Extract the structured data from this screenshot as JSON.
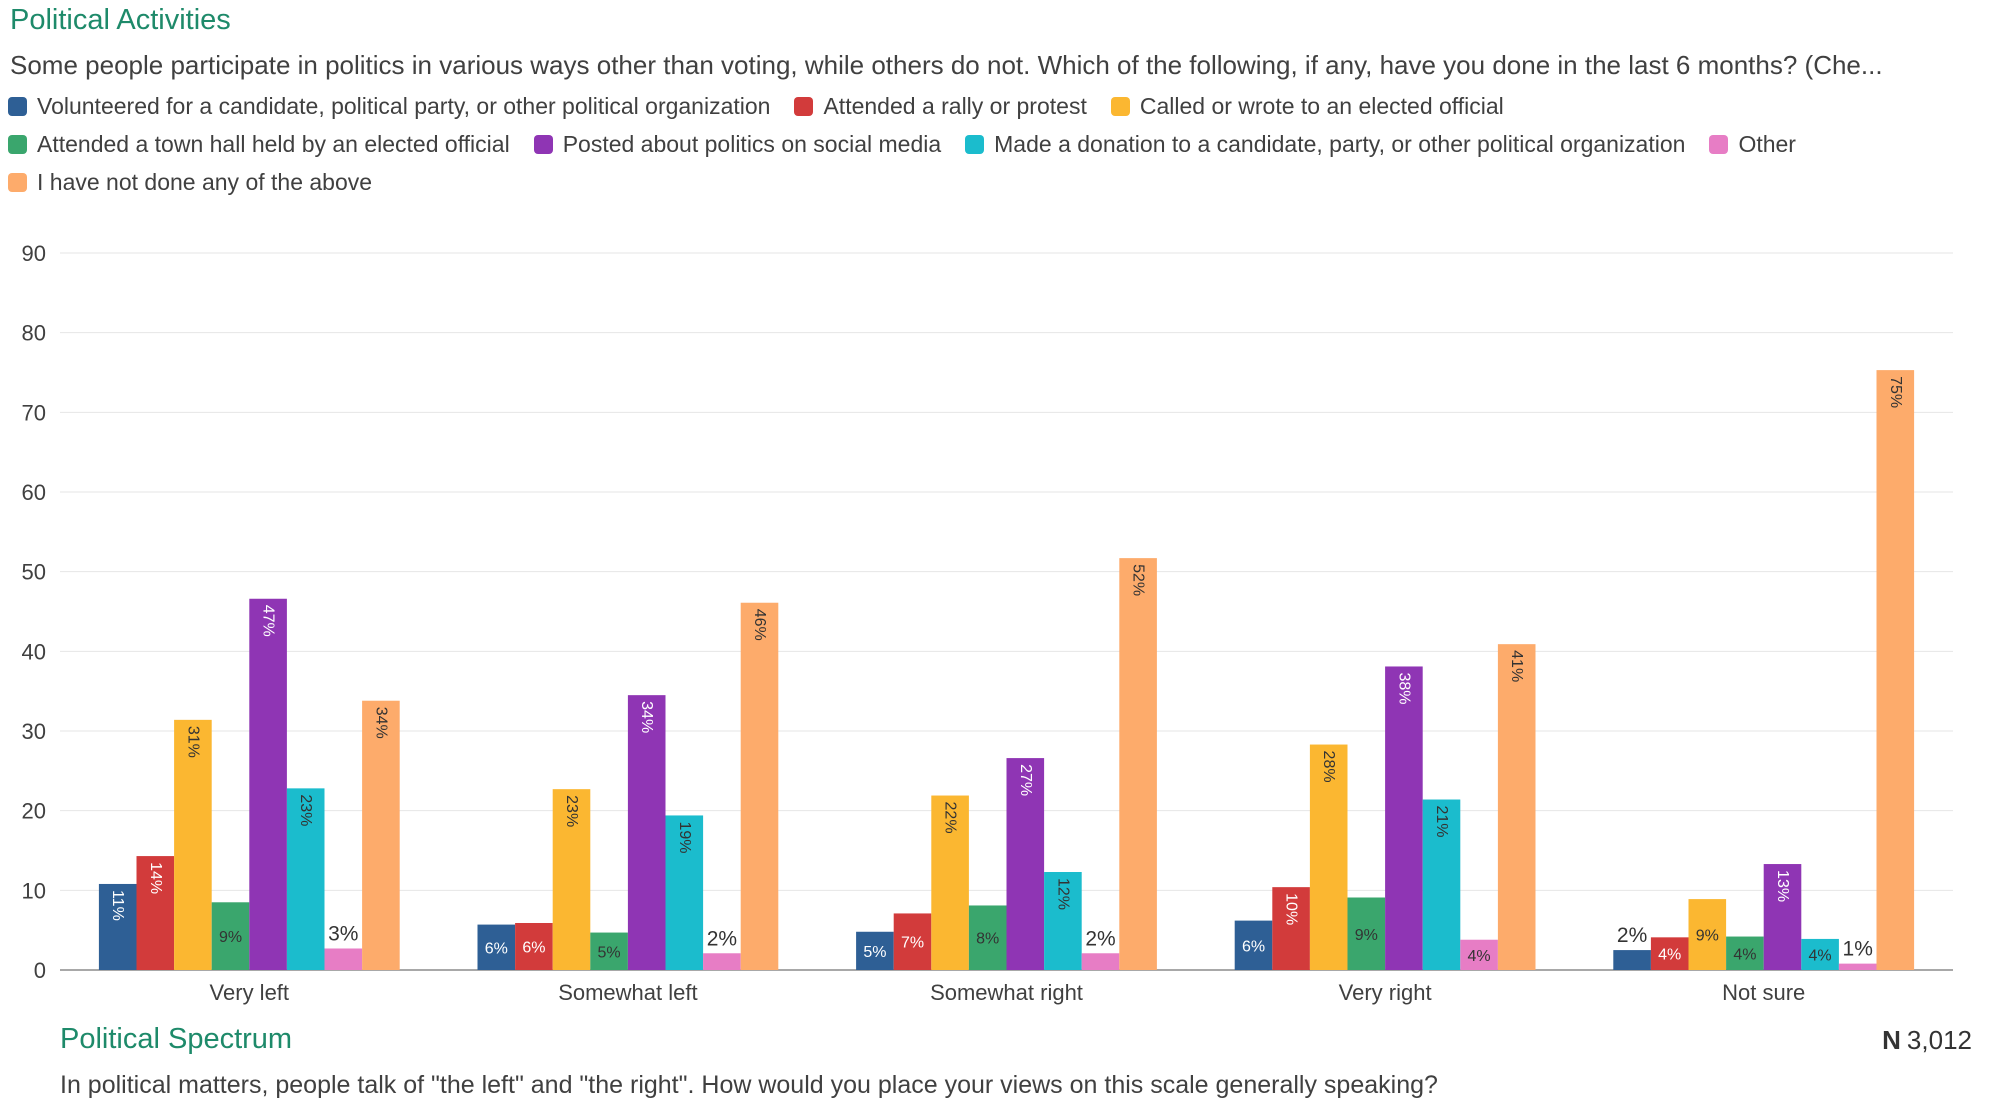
{
  "title": "Political Activities",
  "question": "Some people participate in politics in various ways other than voting, while others do not. Which of the following, if any, have you done in the last 6 months? (Che...",
  "x_title": "Political Spectrum",
  "x_question": "In political matters, people talk of \"the left\" and \"the right\". How would you place your views on this scale generally speaking?",
  "n_label": "N",
  "n_value": "3,012",
  "chart_data": {
    "type": "bar",
    "categories": [
      "Very left",
      "Somewhat left",
      "Somewhat right",
      "Very right",
      "Not sure"
    ],
    "yticks": [
      0,
      10,
      20,
      30,
      40,
      50,
      60,
      70,
      80,
      90
    ],
    "ylim": [
      0,
      90
    ],
    "grid": true,
    "legend_position": "top",
    "series": [
      {
        "name": "Volunteered for a candidate, political party, or other political organization",
        "color": "#2e5f95",
        "values": [
          10.8,
          5.7,
          4.8,
          6.2,
          2.5
        ],
        "labels": [
          "11%",
          "6%",
          "5%",
          "6%",
          "2%"
        ]
      },
      {
        "name": "Attended a rally or protest",
        "color": "#d23b3b",
        "values": [
          14.3,
          5.9,
          7.1,
          10.4,
          4.1
        ],
        "labels": [
          "14%",
          "6%",
          "7%",
          "10%",
          "4%"
        ]
      },
      {
        "name": "Called or wrote to an elected official",
        "color": "#fbb731",
        "values": [
          31.4,
          22.7,
          21.9,
          28.3,
          8.9
        ],
        "labels": [
          "31%",
          "23%",
          "22%",
          "28%",
          "9%"
        ]
      },
      {
        "name": "Attended a town hall held by an elected official",
        "color": "#3aa66d",
        "values": [
          8.5,
          4.7,
          8.1,
          9.1,
          4.2
        ],
        "labels": [
          "9%",
          "5%",
          "8%",
          "9%",
          "4%"
        ]
      },
      {
        "name": "Posted about politics on social media",
        "color": "#8f35b4",
        "values": [
          46.6,
          34.5,
          26.6,
          38.1,
          13.3
        ],
        "labels": [
          "47%",
          "34%",
          "27%",
          "38%",
          "13%"
        ]
      },
      {
        "name": "Made a donation to a candidate, party, or other political organization",
        "color": "#1bbccd",
        "values": [
          22.8,
          19.4,
          12.3,
          21.4,
          3.9
        ],
        "labels": [
          "23%",
          "19%",
          "12%",
          "21%",
          "4%"
        ]
      },
      {
        "name": "Other",
        "color": "#e77dc5",
        "values": [
          2.7,
          2.1,
          2.1,
          3.8,
          0.8
        ],
        "labels": [
          "3%",
          "2%",
          "2%",
          "4%",
          "1%"
        ]
      },
      {
        "name": "I have not done any of the above",
        "color": "#fdab6b",
        "values": [
          33.8,
          46.1,
          51.7,
          40.9,
          75.3
        ],
        "labels": [
          "34%",
          "46%",
          "52%",
          "41%",
          "75%"
        ]
      }
    ]
  }
}
